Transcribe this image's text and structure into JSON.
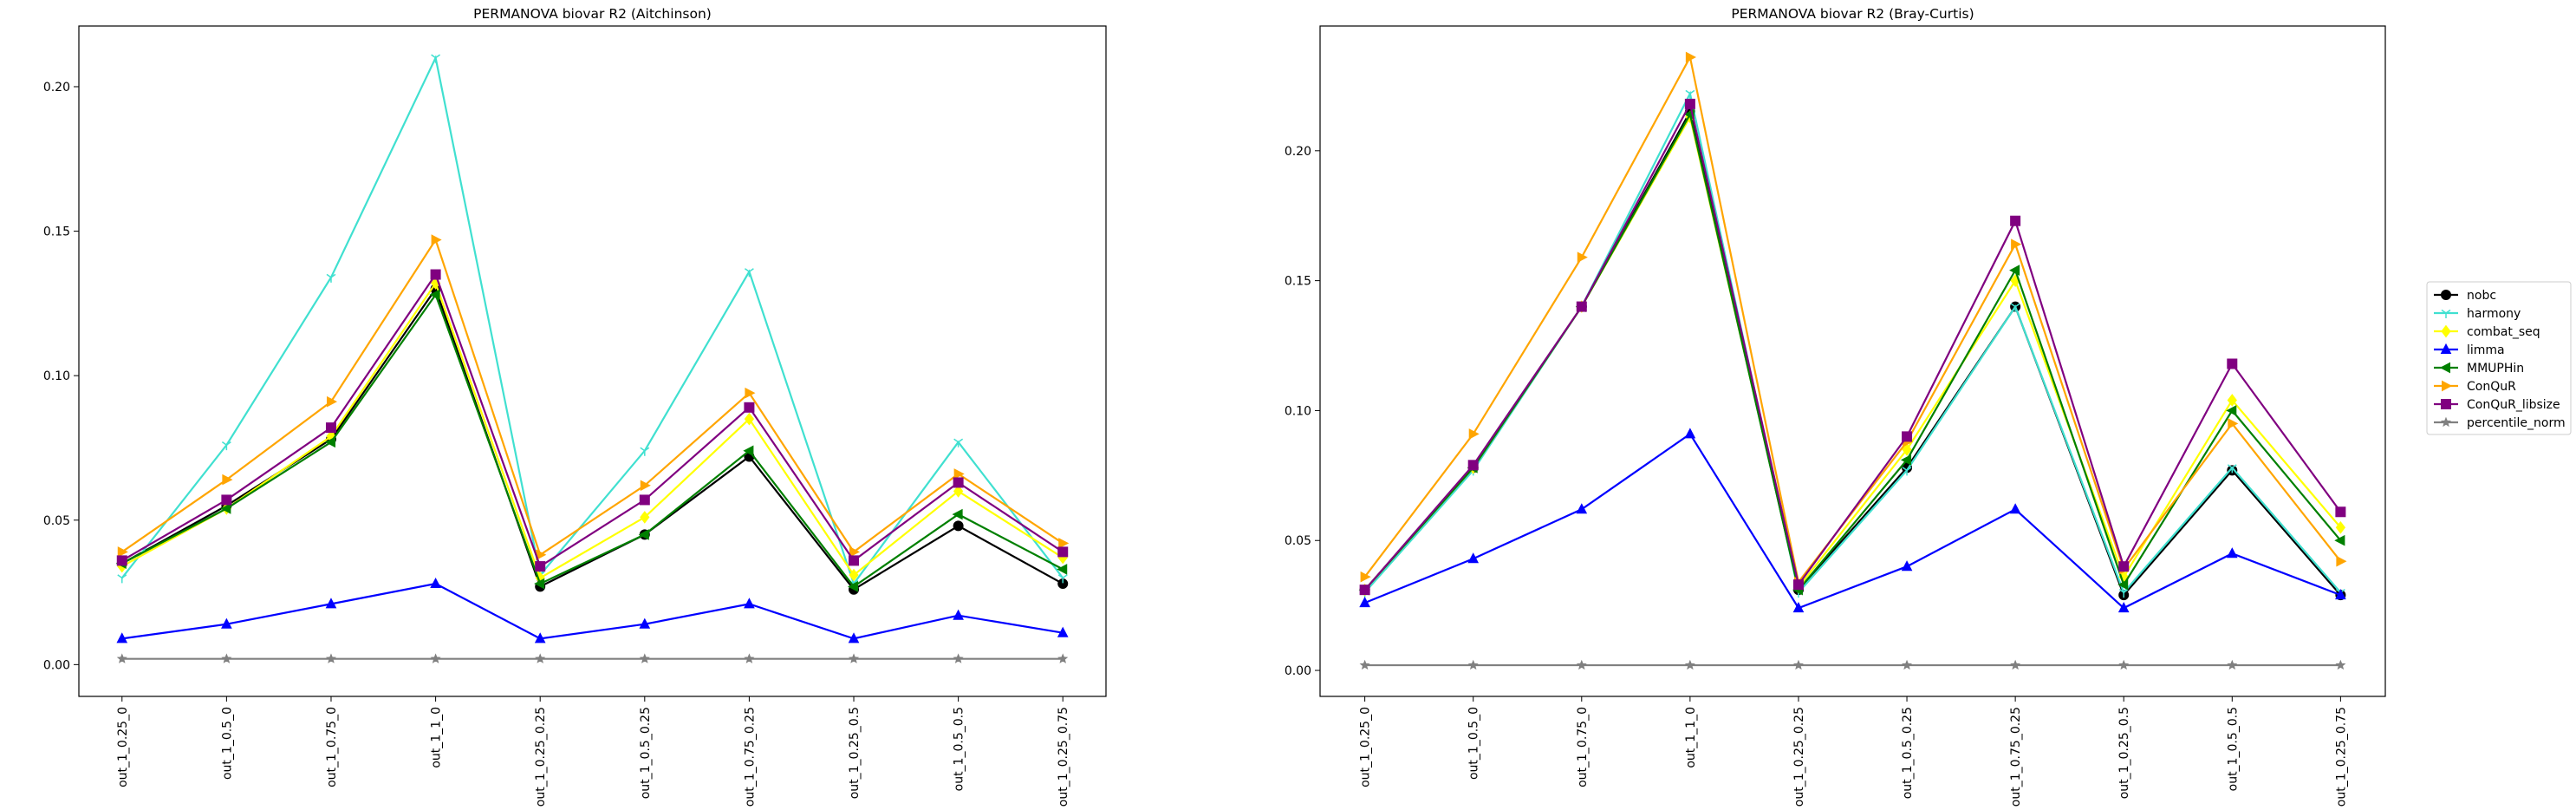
{
  "chart_data": [
    {
      "type": "line",
      "title": "PERMANOVA biovar R2 (Aitchinson)",
      "xlabel": "",
      "ylabel": "",
      "categories": [
        "out_1_0.25_0",
        "out_1_0.5_0",
        "out_1_0.75_0",
        "out_1_1_0",
        "out_1_0.25_0.25",
        "out_1_0.5_0.25",
        "out_1_0.75_0.25",
        "out_1_0.25_0.5",
        "out_1_0.5_0.5",
        "out_1_0.25_0.75"
      ],
      "ylim": [
        -0.011,
        0.221
      ],
      "yticks": [
        0.0,
        0.05,
        0.1,
        0.15,
        0.2
      ],
      "ytick_labels": [
        "0.00",
        "0.05",
        "0.10",
        "0.15",
        "0.20"
      ],
      "grid": false,
      "series": [
        {
          "name": "nobc",
          "color": "#000000",
          "marker": "circle",
          "values": [
            0.035,
            0.055,
            0.078,
            0.13,
            0.027,
            0.045,
            0.072,
            0.026,
            0.048,
            0.028
          ]
        },
        {
          "name": "harmony",
          "color": "#40e0d0",
          "marker": "tri_down",
          "values": [
            0.03,
            0.076,
            0.134,
            0.21,
            0.031,
            0.074,
            0.136,
            0.028,
            0.077,
            0.03
          ]
        },
        {
          "name": "combat_seq",
          "color": "#ffff00",
          "marker": "diamond",
          "values": [
            0.034,
            0.054,
            0.079,
            0.132,
            0.03,
            0.051,
            0.085,
            0.031,
            0.06,
            0.037
          ]
        },
        {
          "name": "limma",
          "color": "#0000ff",
          "marker": "triangle_up",
          "values": [
            0.009,
            0.014,
            0.021,
            0.028,
            0.009,
            0.014,
            0.021,
            0.009,
            0.017,
            0.011
          ]
        },
        {
          "name": "MMUPHin",
          "color": "#008000",
          "marker": "triangle_left",
          "values": [
            0.035,
            0.054,
            0.077,
            0.128,
            0.028,
            0.045,
            0.074,
            0.027,
            0.052,
            0.033
          ]
        },
        {
          "name": "ConQuR",
          "color": "#ffa500",
          "marker": "triangle_right",
          "values": [
            0.039,
            0.064,
            0.091,
            0.147,
            0.038,
            0.062,
            0.094,
            0.039,
            0.066,
            0.042
          ]
        },
        {
          "name": "ConQuR_libsize",
          "color": "#800080",
          "marker": "square",
          "values": [
            0.036,
            0.057,
            0.082,
            0.135,
            0.034,
            0.057,
            0.089,
            0.036,
            0.063,
            0.039
          ]
        },
        {
          "name": "percentile_norm",
          "color": "#808080",
          "marker": "star",
          "values": [
            0.002,
            0.002,
            0.002,
            0.002,
            0.002,
            0.002,
            0.002,
            0.002,
            0.002,
            0.002
          ]
        }
      ]
    },
    {
      "type": "line",
      "title": "PERMANOVA biovar R2 (Bray-Curtis)",
      "xlabel": "",
      "ylabel": "",
      "categories": [
        "out_1_0.25_0",
        "out_1_0.5_0",
        "out_1_0.75_0",
        "out_1_1_0",
        "out_1_0.25_0.25",
        "out_1_0.5_0.25",
        "out_1_0.75_0.25",
        "out_1_0.25_0.5",
        "out_1_0.5_0.5",
        "out_1_0.25_0.75"
      ],
      "ylim": [
        -0.01,
        0.248
      ],
      "yticks": [
        0.0,
        0.05,
        0.1,
        0.15,
        0.2
      ],
      "ytick_labels": [
        "0.00",
        "0.05",
        "0.10",
        "0.15",
        "0.20"
      ],
      "grid": false,
      "series": [
        {
          "name": "nobc",
          "color": "#000000",
          "marker": "circle",
          "values": [
            0.031,
            0.078,
            0.14,
            0.215,
            0.031,
            0.078,
            0.14,
            0.029,
            0.077,
            0.029
          ]
        },
        {
          "name": "harmony",
          "color": "#40e0d0",
          "marker": "tri_down",
          "values": [
            0.03,
            0.077,
            0.14,
            0.222,
            0.03,
            0.077,
            0.14,
            0.03,
            0.078,
            0.03
          ]
        },
        {
          "name": "combat_seq",
          "color": "#ffff00",
          "marker": "diamond",
          "values": [
            0.031,
            0.078,
            0.14,
            0.213,
            0.032,
            0.085,
            0.15,
            0.036,
            0.104,
            0.055
          ]
        },
        {
          "name": "limma",
          "color": "#0000ff",
          "marker": "triangle_up",
          "values": [
            0.026,
            0.043,
            0.062,
            0.091,
            0.024,
            0.04,
            0.062,
            0.024,
            0.045,
            0.029
          ]
        },
        {
          "name": "MMUPHin",
          "color": "#008000",
          "marker": "triangle_left",
          "values": [
            0.031,
            0.078,
            0.14,
            0.214,
            0.031,
            0.081,
            0.154,
            0.033,
            0.1,
            0.05
          ]
        },
        {
          "name": "ConQuR",
          "color": "#ffa500",
          "marker": "triangle_right",
          "values": [
            0.036,
            0.091,
            0.159,
            0.236,
            0.034,
            0.088,
            0.164,
            0.039,
            0.095,
            0.042
          ]
        },
        {
          "name": "ConQuR_libsize",
          "color": "#800080",
          "marker": "square",
          "values": [
            0.031,
            0.079,
            0.14,
            0.218,
            0.033,
            0.09,
            0.173,
            0.04,
            0.118,
            0.061
          ]
        },
        {
          "name": "percentile_norm",
          "color": "#808080",
          "marker": "star",
          "values": [
            0.002,
            0.002,
            0.002,
            0.002,
            0.002,
            0.002,
            0.002,
            0.002,
            0.002,
            0.002
          ]
        }
      ]
    }
  ],
  "legend": {
    "placement": "right-center",
    "entries": [
      "nobc",
      "harmony",
      "combat_seq",
      "limma",
      "MMUPHin",
      "ConQuR",
      "ConQuR_libsize",
      "percentile_norm"
    ]
  }
}
